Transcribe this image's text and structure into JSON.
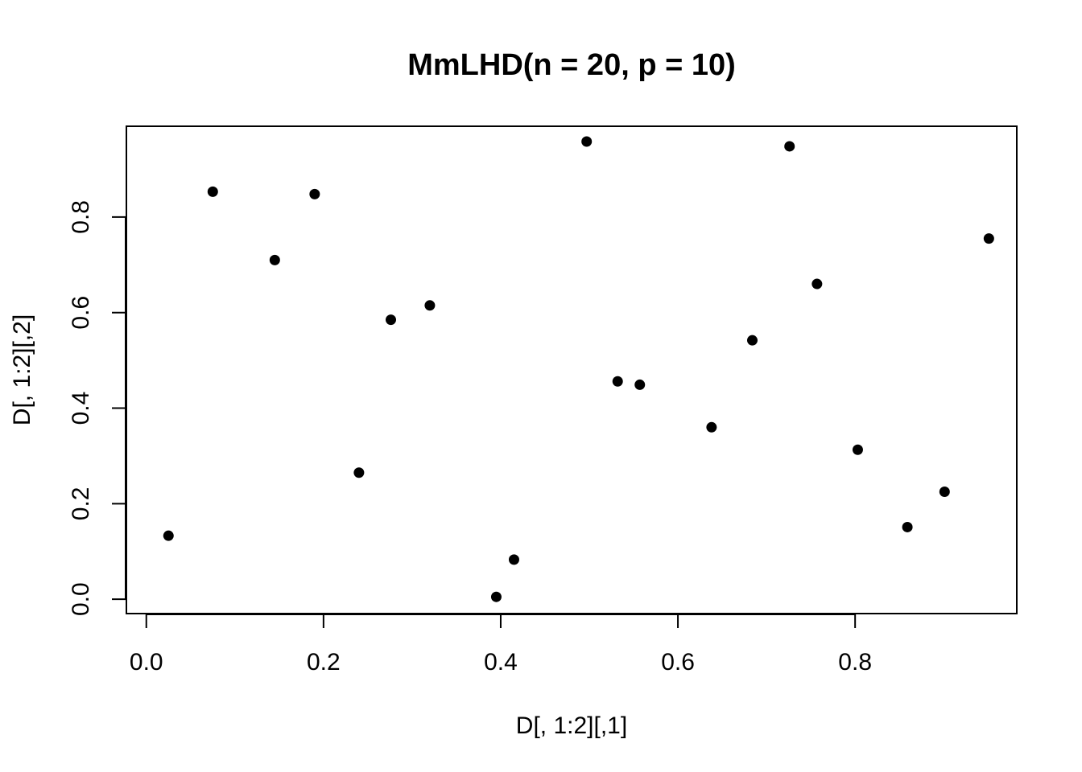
{
  "chart_data": {
    "type": "scatter",
    "title": "MmLHD(n = 20, p = 10)",
    "xlabel": "D[, 1:2][,1]",
    "ylabel": "D[, 1:2][,2]",
    "xlim": [
      -0.0225,
      0.9825
    ],
    "ylim": [
      -0.03,
      0.99
    ],
    "xticks": [
      0.0,
      0.2,
      0.4,
      0.6,
      0.8
    ],
    "yticks": [
      0.0,
      0.2,
      0.4,
      0.6,
      0.8
    ],
    "xtick_labels": [
      "0.0",
      "0.2",
      "0.4",
      "0.6",
      "0.8"
    ],
    "ytick_labels": [
      "0.0",
      "0.2",
      "0.4",
      "0.6",
      "0.8"
    ],
    "grid": false,
    "points": [
      {
        "x": 0.025,
        "y": 0.133
      },
      {
        "x": 0.075,
        "y": 0.853
      },
      {
        "x": 0.145,
        "y": 0.71
      },
      {
        "x": 0.19,
        "y": 0.848
      },
      {
        "x": 0.24,
        "y": 0.265
      },
      {
        "x": 0.276,
        "y": 0.585
      },
      {
        "x": 0.32,
        "y": 0.615
      },
      {
        "x": 0.395,
        "y": 0.005
      },
      {
        "x": 0.415,
        "y": 0.083
      },
      {
        "x": 0.497,
        "y": 0.958
      },
      {
        "x": 0.532,
        "y": 0.456
      },
      {
        "x": 0.557,
        "y": 0.449
      },
      {
        "x": 0.638,
        "y": 0.36
      },
      {
        "x": 0.684,
        "y": 0.542
      },
      {
        "x": 0.726,
        "y": 0.948
      },
      {
        "x": 0.757,
        "y": 0.66
      },
      {
        "x": 0.803,
        "y": 0.313
      },
      {
        "x": 0.859,
        "y": 0.151
      },
      {
        "x": 0.901,
        "y": 0.225
      },
      {
        "x": 0.951,
        "y": 0.755
      }
    ]
  }
}
